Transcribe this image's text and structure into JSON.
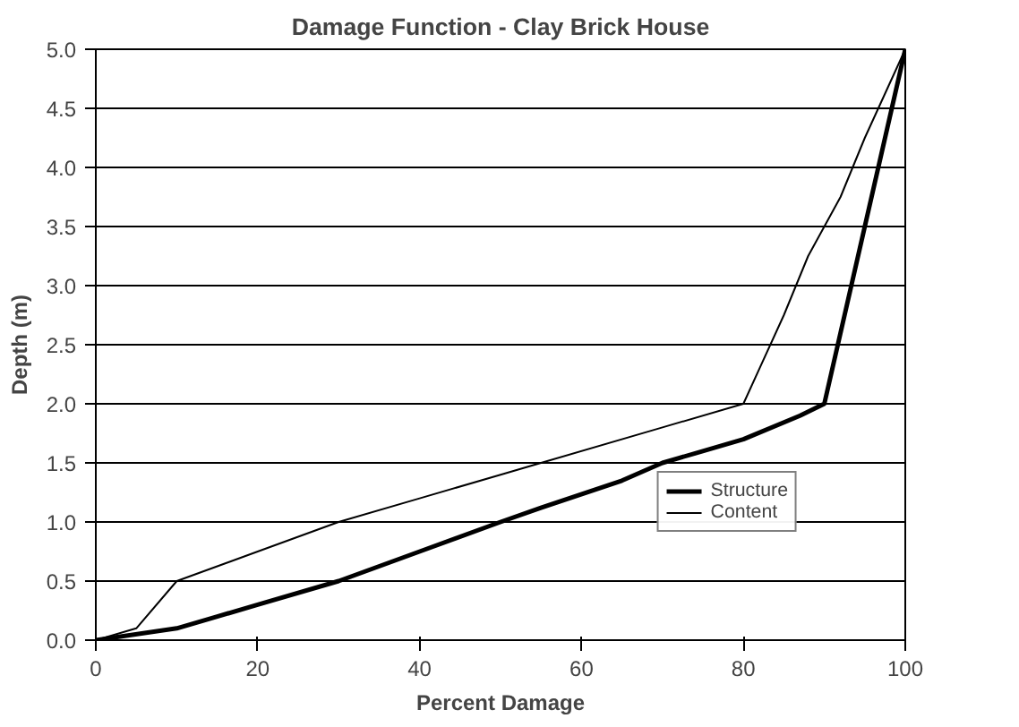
{
  "chart_data": {
    "type": "line",
    "title": "Damage Function - Clay Brick House",
    "xlabel": "Percent Damage",
    "ylabel": "Depth (m)",
    "xlim": [
      0,
      100
    ],
    "xticks": [
      0,
      20,
      40,
      60,
      80,
      100
    ],
    "ylim": [
      0,
      5
    ],
    "yticks": [
      {
        "value": 0,
        "label": "0.0"
      },
      0.5,
      {
        "value": 1,
        "label": "1.0"
      },
      1.5,
      {
        "value": 2,
        "label": "2.0"
      },
      2.5,
      {
        "value": 3,
        "label": "3.0"
      },
      3.5,
      {
        "value": 4,
        "label": "4.0"
      },
      4.5,
      {
        "value": 5,
        "label": "5.0"
      }
    ],
    "grid": "y",
    "legend": "bottom right",
    "marker": "none",
    "line_style": "solid",
    "series": [
      {
        "name": "Structure",
        "color": "#000000",
        "x": [
          0,
          10,
          15,
          20,
          30,
          40,
          50,
          55,
          65,
          70,
          80,
          87,
          90,
          100
        ],
        "values": [
          0,
          0.1,
          0.2,
          0.3,
          0.5,
          0.75,
          1.0,
          1.12,
          1.35,
          1.5,
          1.7,
          1.9,
          2.0,
          5.0
        ]
      },
      {
        "name": "Content",
        "color": "#000000",
        "x": [
          0,
          5,
          10,
          20,
          30,
          40,
          50,
          55,
          70,
          80,
          82,
          85,
          88,
          92,
          95,
          100
        ],
        "values": [
          0,
          0.1,
          0.5,
          0.75,
          1.0,
          1.2,
          1.4,
          1.5,
          1.8,
          2.0,
          2.3,
          2.75,
          3.25,
          3.75,
          4.25,
          5.0
        ]
      }
    ]
  }
}
